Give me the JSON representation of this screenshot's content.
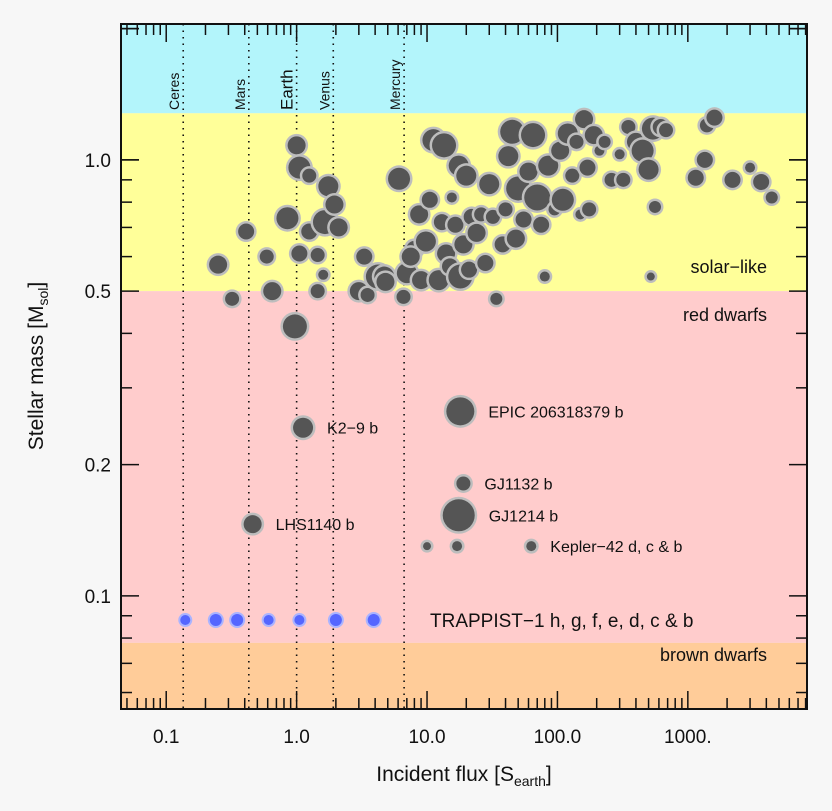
{
  "chart_data": {
    "type": "scatter",
    "title": "",
    "xlabel_main": "Incident flux [S",
    "xlabel_sub": "earth",
    "xlabel_close": "]",
    "ylabel_main": "Stellar mass [M",
    "ylabel_sub": "sol",
    "ylabel_close": "]",
    "x_scale": "log",
    "y_scale": "log",
    "xlim": [
      0.045,
      8200
    ],
    "ylim": [
      0.055,
      2.05
    ],
    "x_ticks": [
      {
        "v": 0.1,
        "label": "0.1"
      },
      {
        "v": 1,
        "label": "1.0"
      },
      {
        "v": 10,
        "label": "10.0"
      },
      {
        "v": 100,
        "label": "100.0"
      },
      {
        "v": 1000,
        "label": "1000."
      }
    ],
    "y_ticks": [
      {
        "v": 0.1,
        "label": "0.1"
      },
      {
        "v": 0.2,
        "label": "0.2"
      },
      {
        "v": 0.5,
        "label": "0.5"
      },
      {
        "v": 1.0,
        "label": "1.0"
      }
    ],
    "regions": [
      {
        "label": "solar−like",
        "ymin": 0.5,
        "ymax": 1.28,
        "color": "#ffff99"
      },
      {
        "label": "",
        "ymin": 1.28,
        "ymax": 2.05,
        "color": "#b3f5fb"
      },
      {
        "label": "red dwarfs",
        "ymin": 0.078,
        "ymax": 0.5,
        "color": "#ffcccc"
      },
      {
        "label": "brown dwarfs",
        "ymin": 0.055,
        "ymax": 0.078,
        "color": "#ffcc99"
      }
    ],
    "planet_lines": [
      {
        "name": "Ceres",
        "flux": 0.135
      },
      {
        "name": "Mars",
        "flux": 0.43
      },
      {
        "name": "Earth",
        "flux": 1.0
      },
      {
        "name": "Venus",
        "flux": 1.91
      },
      {
        "name": "Mercury",
        "flux": 6.67
      }
    ],
    "labeled_points": [
      {
        "label": "EPIC 206318379 b",
        "x": 18,
        "y": 0.265,
        "size": 14
      },
      {
        "label": "K2−9 b",
        "x": 1.12,
        "y": 0.243,
        "size": 10
      },
      {
        "label": "GJ1132 b",
        "x": 19,
        "y": 0.181,
        "size": 7
      },
      {
        "label": "GJ1214 b",
        "x": 17.5,
        "y": 0.153,
        "size": 16
      },
      {
        "label": "LHS1140 b",
        "x": 0.46,
        "y": 0.146,
        "size": 9
      },
      {
        "label": "Kepler−42 d, c & b",
        "x": 63,
        "y": 0.13,
        "size": 5
      }
    ],
    "kepler42_extra": [
      {
        "x": 10,
        "y": 0.13,
        "size": 4
      },
      {
        "x": 17,
        "y": 0.13,
        "size": 5
      }
    ],
    "trappist": {
      "label": "TRAPPIST−1 h, g, f, e, d, c & b",
      "y": 0.088,
      "color": "#5566ff",
      "flux": [
        0.14,
        0.24,
        0.35,
        0.61,
        1.05,
        2.0,
        3.9
      ],
      "sizes": [
        5,
        6,
        6,
        5,
        5,
        6,
        6
      ]
    },
    "solar_points": [
      {
        "x": 0.25,
        "y": 0.575,
        "s": 9
      },
      {
        "x": 0.32,
        "y": 0.48,
        "s": 7
      },
      {
        "x": 0.41,
        "y": 0.685,
        "s": 8
      },
      {
        "x": 0.59,
        "y": 0.6,
        "s": 7
      },
      {
        "x": 0.65,
        "y": 0.5,
        "s": 9
      },
      {
        "x": 0.85,
        "y": 0.735,
        "s": 11
      },
      {
        "x": 0.97,
        "y": 0.415,
        "s": 12
      },
      {
        "x": 1.0,
        "y": 1.08,
        "s": 9
      },
      {
        "x": 1.05,
        "y": 0.61,
        "s": 8
      },
      {
        "x": 1.05,
        "y": 0.96,
        "s": 11
      },
      {
        "x": 1.25,
        "y": 0.685,
        "s": 8
      },
      {
        "x": 1.25,
        "y": 0.92,
        "s": 7
      },
      {
        "x": 1.45,
        "y": 0.605,
        "s": 7
      },
      {
        "x": 1.45,
        "y": 0.5,
        "s": 7
      },
      {
        "x": 1.6,
        "y": 0.545,
        "s": 5
      },
      {
        "x": 1.65,
        "y": 0.72,
        "s": 12
      },
      {
        "x": 1.75,
        "y": 0.87,
        "s": 10
      },
      {
        "x": 2.1,
        "y": 0.7,
        "s": 9
      },
      {
        "x": 1.95,
        "y": 0.79,
        "s": 9
      },
      {
        "x": 3.0,
        "y": 0.5,
        "s": 9
      },
      {
        "x": 3.3,
        "y": 0.6,
        "s": 8
      },
      {
        "x": 3.5,
        "y": 0.49,
        "s": 7
      },
      {
        "x": 4.2,
        "y": 0.54,
        "s": 12
      },
      {
        "x": 4.7,
        "y": 0.54,
        "s": 10
      },
      {
        "x": 4.8,
        "y": 0.525,
        "s": 9
      },
      {
        "x": 6.1,
        "y": 0.905,
        "s": 11
      },
      {
        "x": 6.6,
        "y": 0.485,
        "s": 7
      },
      {
        "x": 7.0,
        "y": 0.55,
        "s": 10
      },
      {
        "x": 8.0,
        "y": 0.625,
        "s": 8
      },
      {
        "x": 7.5,
        "y": 0.6,
        "s": 9
      },
      {
        "x": 8.7,
        "y": 0.75,
        "s": 9
      },
      {
        "x": 9.0,
        "y": 0.53,
        "s": 9
      },
      {
        "x": 9.8,
        "y": 0.65,
        "s": 10
      },
      {
        "x": 10.5,
        "y": 0.81,
        "s": 8
      },
      {
        "x": 11.2,
        "y": 1.11,
        "s": 11
      },
      {
        "x": 12.3,
        "y": 0.53,
        "s": 10
      },
      {
        "x": 13.0,
        "y": 0.72,
        "s": 8
      },
      {
        "x": 13.5,
        "y": 1.08,
        "s": 12
      },
      {
        "x": 14.0,
        "y": 0.61,
        "s": 9
      },
      {
        "x": 15.0,
        "y": 0.57,
        "s": 8
      },
      {
        "x": 15.5,
        "y": 0.82,
        "s": 5
      },
      {
        "x": 16.5,
        "y": 0.71,
        "s": 8
      },
      {
        "x": 17.5,
        "y": 0.97,
        "s": 10
      },
      {
        "x": 18.0,
        "y": 0.54,
        "s": 12
      },
      {
        "x": 19.0,
        "y": 0.64,
        "s": 9
      },
      {
        "x": 20.0,
        "y": 0.92,
        "s": 10
      },
      {
        "x": 22.0,
        "y": 0.74,
        "s": 8
      },
      {
        "x": 21.0,
        "y": 0.56,
        "s": 8
      },
      {
        "x": 24.0,
        "y": 0.68,
        "s": 9
      },
      {
        "x": 26.0,
        "y": 0.75,
        "s": 7
      },
      {
        "x": 28.0,
        "y": 0.58,
        "s": 8
      },
      {
        "x": 30.0,
        "y": 0.88,
        "s": 10
      },
      {
        "x": 32.0,
        "y": 0.74,
        "s": 7
      },
      {
        "x": 34.0,
        "y": 0.48,
        "s": 6
      },
      {
        "x": 38.0,
        "y": 0.64,
        "s": 8
      },
      {
        "x": 40.0,
        "y": 0.77,
        "s": 7
      },
      {
        "x": 42.0,
        "y": 1.02,
        "s": 10
      },
      {
        "x": 45.0,
        "y": 1.16,
        "s": 12
      },
      {
        "x": 48.0,
        "y": 0.66,
        "s": 9
      },
      {
        "x": 50.0,
        "y": 0.86,
        "s": 12
      },
      {
        "x": 55.0,
        "y": 0.73,
        "s": 8
      },
      {
        "x": 60.0,
        "y": 0.94,
        "s": 9
      },
      {
        "x": 65.0,
        "y": 1.14,
        "s": 12
      },
      {
        "x": 70.0,
        "y": 0.82,
        "s": 13
      },
      {
        "x": 75.0,
        "y": 0.71,
        "s": 8
      },
      {
        "x": 80.0,
        "y": 0.54,
        "s": 5
      },
      {
        "x": 85.0,
        "y": 0.97,
        "s": 10
      },
      {
        "x": 95.0,
        "y": 0.77,
        "s": 6
      },
      {
        "x": 105.0,
        "y": 1.05,
        "s": 9
      },
      {
        "x": 110.0,
        "y": 0.81,
        "s": 11
      },
      {
        "x": 120.0,
        "y": 1.15,
        "s": 10
      },
      {
        "x": 130.0,
        "y": 0.92,
        "s": 7
      },
      {
        "x": 140.0,
        "y": 1.1,
        "s": 7
      },
      {
        "x": 150.0,
        "y": 0.75,
        "s": 5
      },
      {
        "x": 160.0,
        "y": 1.24,
        "s": 9
      },
      {
        "x": 170.0,
        "y": 0.96,
        "s": 8
      },
      {
        "x": 175.0,
        "y": 0.77,
        "s": 7
      },
      {
        "x": 190.0,
        "y": 1.14,
        "s": 9
      },
      {
        "x": 210.0,
        "y": 1.05,
        "s": 5
      },
      {
        "x": 230.0,
        "y": 1.1,
        "s": 6
      },
      {
        "x": 260.0,
        "y": 0.9,
        "s": 7
      },
      {
        "x": 300.0,
        "y": 1.03,
        "s": 5
      },
      {
        "x": 320.0,
        "y": 0.9,
        "s": 7
      },
      {
        "x": 350.0,
        "y": 1.19,
        "s": 7
      },
      {
        "x": 400.0,
        "y": 1.1,
        "s": 9
      },
      {
        "x": 450.0,
        "y": 1.05,
        "s": 11
      },
      {
        "x": 500.0,
        "y": 0.95,
        "s": 10
      },
      {
        "x": 540.0,
        "y": 1.18,
        "s": 11
      },
      {
        "x": 560.0,
        "y": 0.78,
        "s": 6
      },
      {
        "x": 620.0,
        "y": 1.19,
        "s": 8
      },
      {
        "x": 680.0,
        "y": 1.17,
        "s": 7
      },
      {
        "x": 520.0,
        "y": 0.54,
        "s": 4
      },
      {
        "x": 1150.0,
        "y": 0.91,
        "s": 8
      },
      {
        "x": 1350.0,
        "y": 1.0,
        "s": 8
      },
      {
        "x": 1400.0,
        "y": 1.2,
        "s": 7
      },
      {
        "x": 1600.0,
        "y": 1.25,
        "s": 8
      },
      {
        "x": 2200.0,
        "y": 0.9,
        "s": 8
      },
      {
        "x": 3650.0,
        "y": 0.89,
        "s": 8
      },
      {
        "x": 4400.0,
        "y": 0.82,
        "s": 6
      },
      {
        "x": 3000.0,
        "y": 0.96,
        "s": 5
      }
    ]
  }
}
